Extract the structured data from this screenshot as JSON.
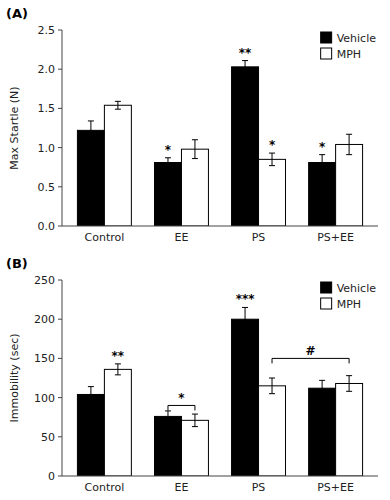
{
  "chart_data": [
    {
      "type": "bar",
      "title": "(A)",
      "ylabel": "Max Startle (N)",
      "categories": [
        "Control",
        "EE",
        "PS",
        "PS+EE"
      ],
      "series": [
        {
          "name": "Vehicle",
          "color": "#000000",
          "values": [
            1.22,
            0.81,
            2.03,
            0.81
          ],
          "errors": [
            0.12,
            0.06,
            0.08,
            0.1
          ]
        },
        {
          "name": "MPH",
          "color": "#ffffff",
          "values": [
            1.54,
            0.98,
            0.85,
            1.04
          ],
          "errors": [
            0.05,
            0.12,
            0.08,
            0.13
          ]
        }
      ],
      "ylim": [
        0,
        2.5
      ],
      "yticks": [
        {
          "value": 0,
          "label": "0.0"
        },
        0.5,
        {
          "value": 1.0,
          "label": "1.0"
        },
        1.5,
        {
          "value": 2.0,
          "label": "2.0"
        },
        2.5
      ],
      "legend": "upper right",
      "annotations": [
        {
          "text": "**",
          "category": "PS",
          "series": "Vehicle"
        },
        {
          "text": "*",
          "category": "EE",
          "series": "Vehicle"
        },
        {
          "text": "*",
          "category": "PS",
          "series": "MPH"
        },
        {
          "text": "*",
          "category": "PS+EE",
          "series": "Vehicle"
        }
      ]
    },
    {
      "type": "bar",
      "title": "(B)",
      "ylabel": "Immobility (sec)",
      "categories": [
        "Control",
        "EE",
        "PS",
        "PS+EE"
      ],
      "series": [
        {
          "name": "Vehicle",
          "color": "#000000",
          "values": [
            104,
            76,
            200,
            112
          ],
          "errors": [
            10,
            7,
            15,
            10
          ]
        },
        {
          "name": "MPH",
          "color": "#ffffff",
          "values": [
            136,
            71,
            115,
            118
          ],
          "errors": [
            7,
            8,
            10,
            10
          ]
        }
      ],
      "ylim": [
        0,
        250
      ],
      "yticks": [
        0,
        50,
        100,
        150,
        200,
        250
      ],
      "legend": "upper right",
      "annotations": [
        {
          "text": "***",
          "category": "PS",
          "series": "Vehicle"
        },
        {
          "text": "**",
          "category": "Control",
          "series": "MPH"
        }
      ],
      "brackets": [
        {
          "text": "*",
          "from": {
            "category": "EE",
            "series": "Vehicle"
          },
          "to": {
            "category": "EE",
            "series": "MPH"
          },
          "y": 90
        },
        {
          "text": "#",
          "from": {
            "category": "PS",
            "series": "MPH"
          },
          "to": {
            "category": "PS+EE",
            "series": "MPH"
          },
          "y": 150
        }
      ]
    }
  ]
}
